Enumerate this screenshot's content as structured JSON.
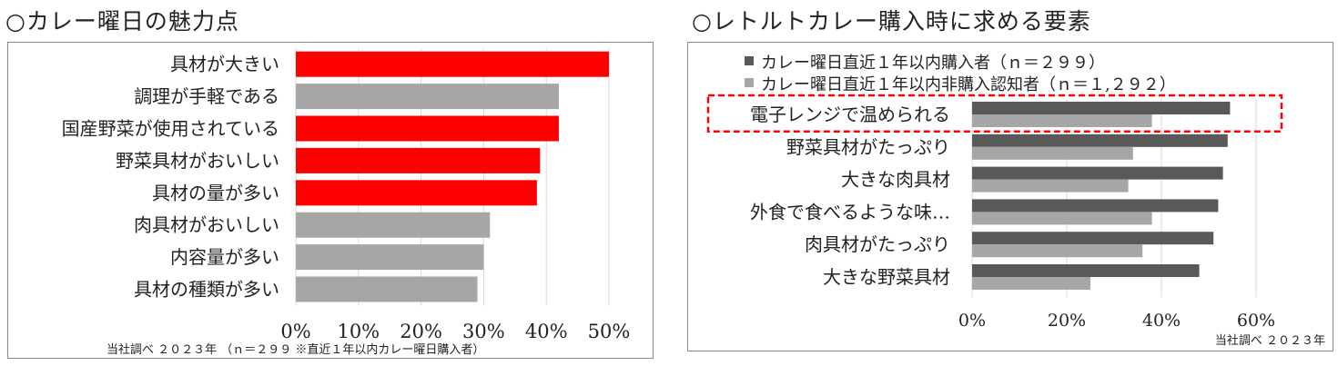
{
  "left": {
    "title": "○カレー曜日の魅力点",
    "note": "当社調べ ２０２３年 （ｎ＝２９９ ※直近１年以内カレー曜日購入者）",
    "highlight_color": "#ff0000",
    "base_color": "#a6a6a6"
  },
  "right": {
    "title": "○レトルトカレー購入時に求める要素",
    "note": "当社調べ ２０２３年",
    "highlight_box_color": "#ff0000"
  },
  "chart_data": [
    {
      "type": "bar",
      "orientation": "horizontal",
      "categories": [
        "具材が大きい",
        "調理が手軽である",
        "国産野菜が使用されている",
        "野菜具材がおいしい",
        "具材の量が多い",
        "肉具材がおいしい",
        "内容量が多い",
        "具材の種類が多い"
      ],
      "values": [
        50,
        42,
        42,
        39,
        38.5,
        31,
        30,
        29
      ],
      "highlighted": [
        true,
        false,
        true,
        true,
        true,
        false,
        false,
        false
      ],
      "xlim": [
        0,
        50
      ],
      "xticks": [
        "0%",
        "10%",
        "20%",
        "30%",
        "40%",
        "50%"
      ],
      "grid": true,
      "unit": "%"
    },
    {
      "type": "bar",
      "orientation": "horizontal",
      "categories": [
        "電子レンジで温められる",
        "野菜具材がたっぷり",
        "大きな肉具材",
        "外食で食べるような味…",
        "肉具材がたっぷり",
        "大きな野菜具材"
      ],
      "series": [
        {
          "name": "カレー曜日直近１年以内購入者（ｎ＝２９９）",
          "color": "#595959",
          "values": [
            54.5,
            54,
            53,
            52,
            51,
            48
          ]
        },
        {
          "name": "カレー曜日直近１年以内非購入認知者（ｎ＝１,２９２）",
          "color": "#a6a6a6",
          "values": [
            38,
            34,
            33,
            38,
            36,
            25
          ]
        }
      ],
      "highlighted_category": "電子レンジで温められる",
      "xlim": [
        0,
        60
      ],
      "xticks": [
        "0%",
        "20%",
        "40%",
        "60%"
      ],
      "grid": true,
      "legend": "top",
      "unit": "%"
    }
  ]
}
